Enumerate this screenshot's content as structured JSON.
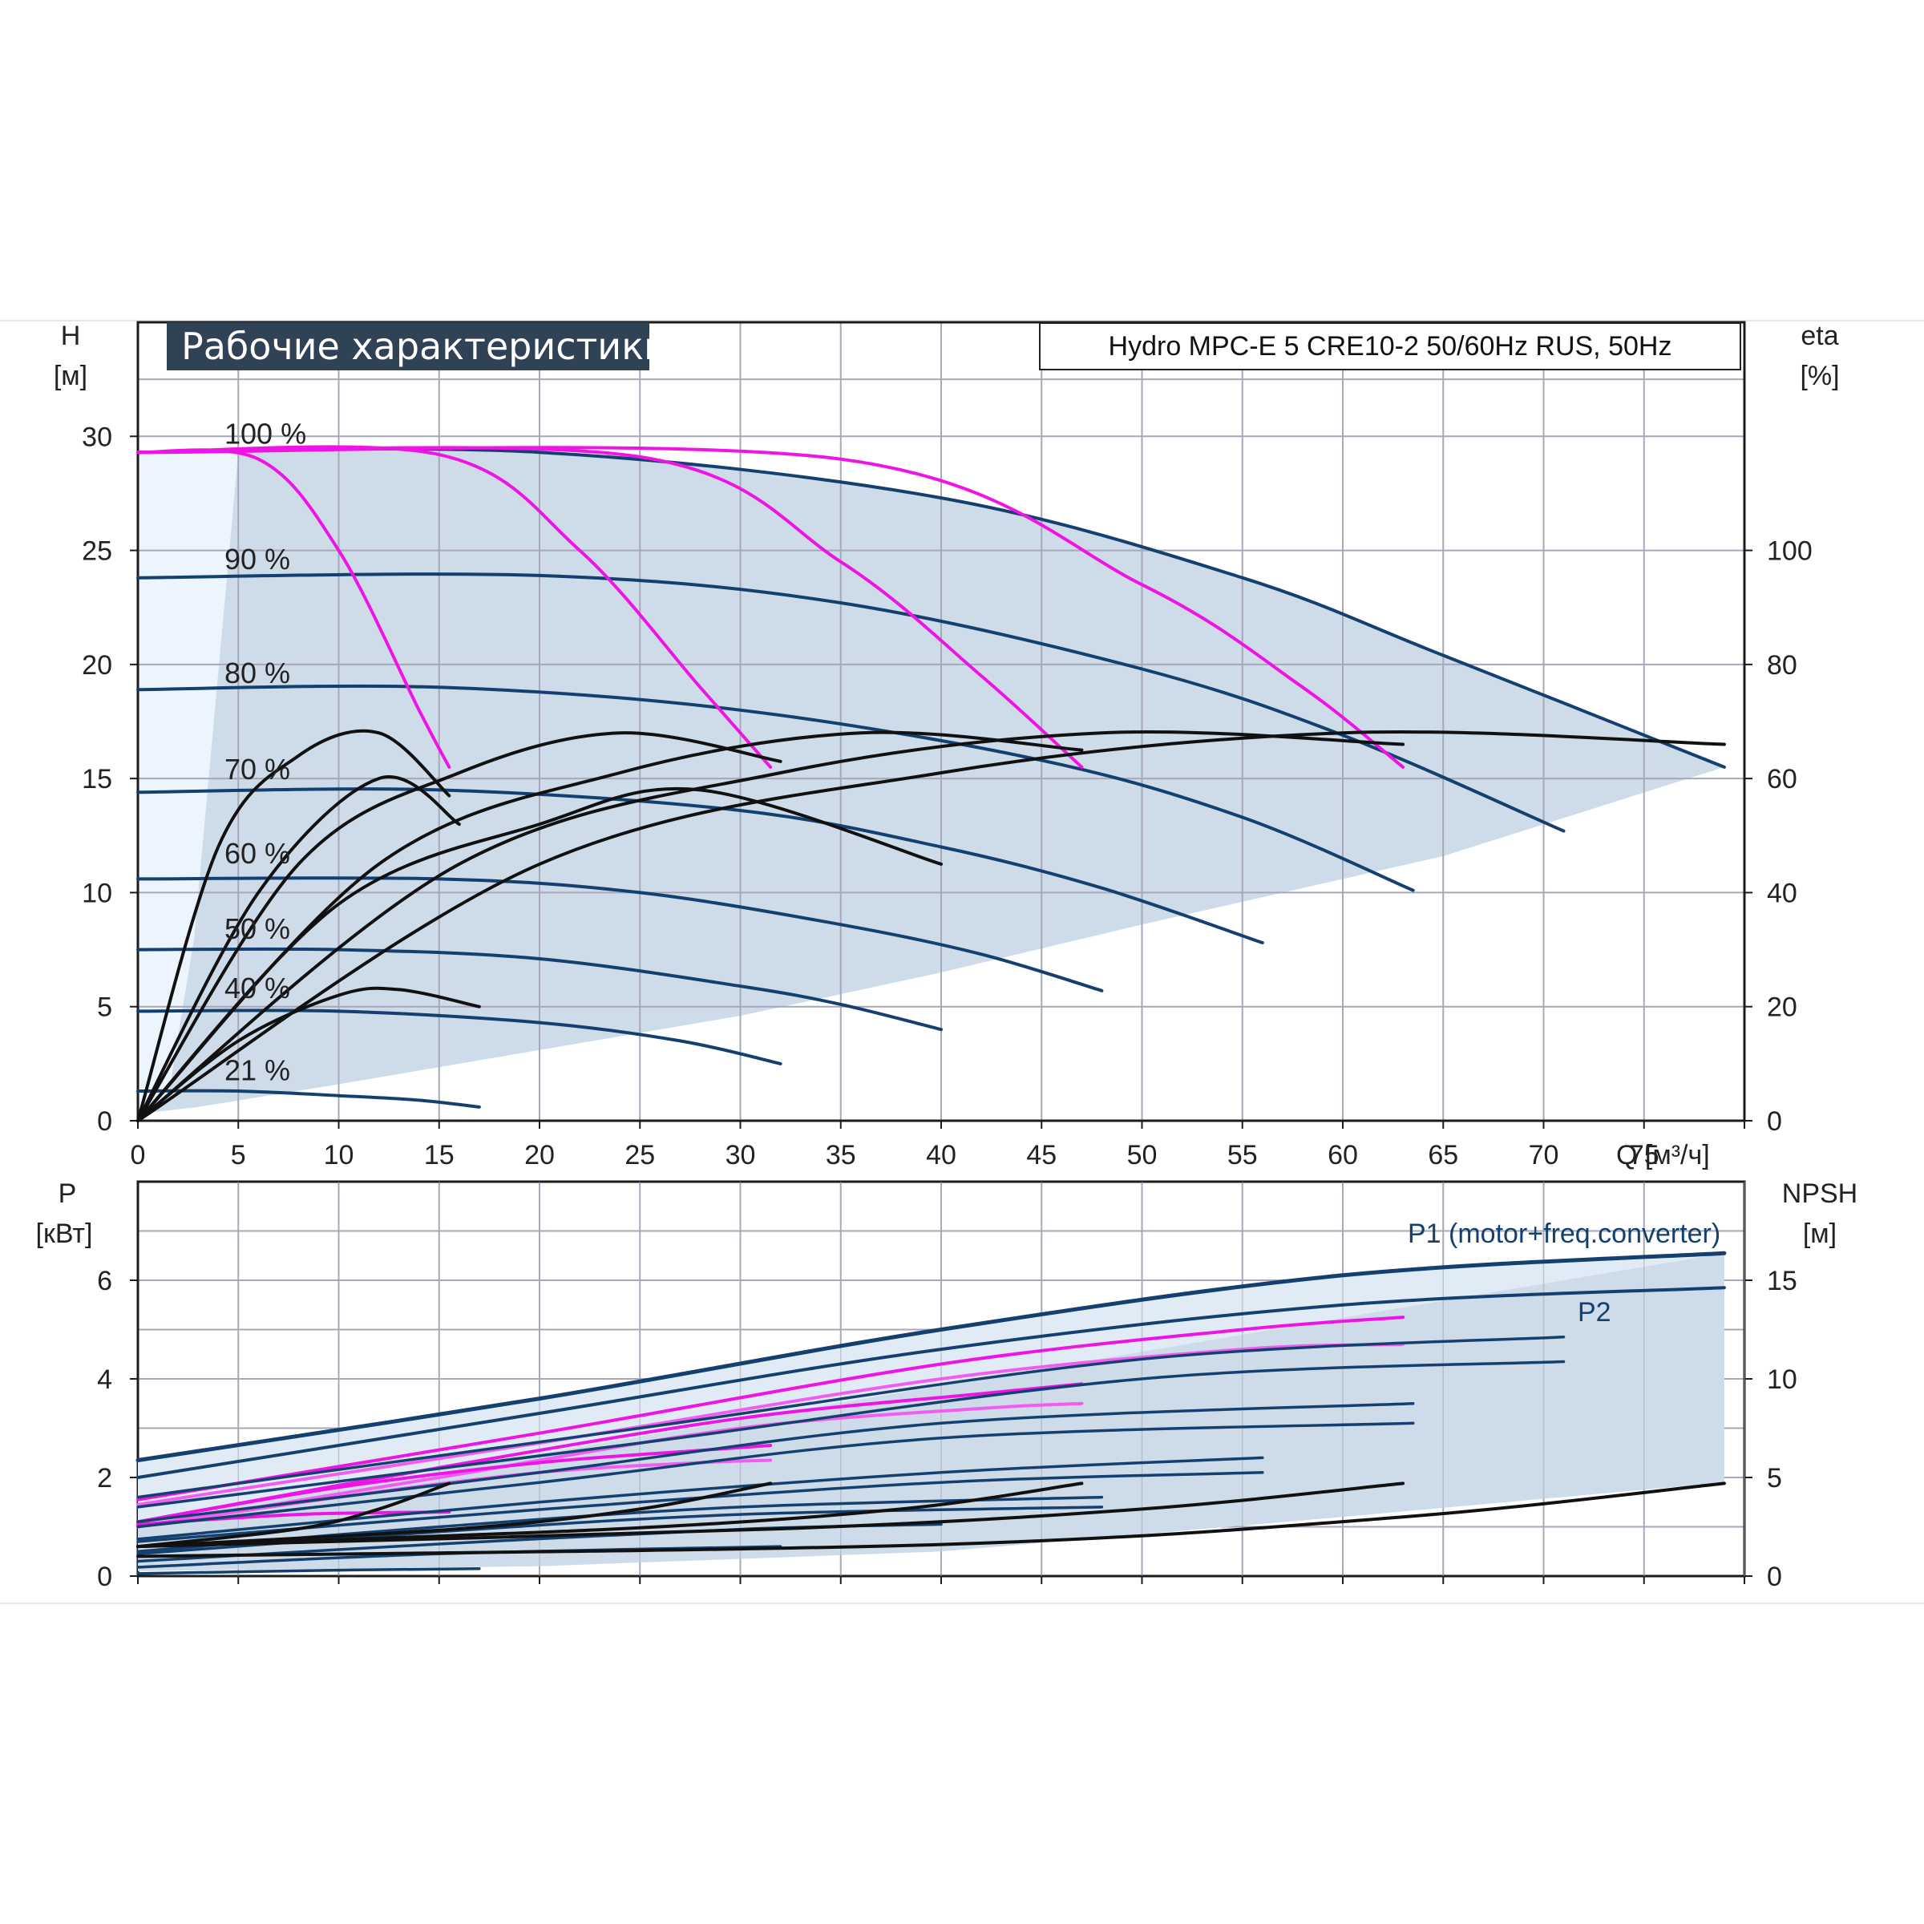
{
  "chart_data": [
    {
      "type": "line",
      "title": "Рабочие характеристики",
      "subtitle": "Hydro MPC-E 5 CRE10-2 50/60Hz RUS, 50Hz",
      "xlabel": "Q [м³/ч]",
      "xlim": [
        0,
        80
      ],
      "xticks": [
        "0",
        "5",
        "10",
        "15",
        "20",
        "25",
        "30",
        "35",
        "40",
        "45",
        "50",
        "55",
        "60",
        "65",
        "70",
        "75"
      ],
      "ylabel": "H",
      "yunit": "[м]",
      "ylim": [
        0,
        35
      ],
      "yticks": [
        "0",
        "5",
        "10",
        "15",
        "20",
        "25",
        "30"
      ],
      "y2label": "eta",
      "y2unit": "[%]",
      "y2lim": [
        0,
        140
      ],
      "y2ticks": [
        "0",
        "20",
        "40",
        "60",
        "80",
        "100"
      ],
      "grid": true,
      "speed_labels": [
        {
          "text": "100 %",
          "y": 30.1
        },
        {
          "text": "90 %",
          "y": 24.6
        },
        {
          "text": "80 %",
          "y": 19.6
        },
        {
          "text": "70 %",
          "y": 15.4
        },
        {
          "text": "60 %",
          "y": 11.7
        },
        {
          "text": "50 %",
          "y": 8.4
        },
        {
          "text": "40 %",
          "y": 5.8
        },
        {
          "text": "21 %",
          "y": 2.2
        }
      ],
      "head_curves": [
        {
          "speed": "100 %",
          "x": [
            0,
            20,
            40,
            55,
            65,
            79
          ],
          "y": [
            29.3,
            29.3,
            27.3,
            23.8,
            20.4,
            15.5
          ]
        },
        {
          "speed": "90 %",
          "x": [
            0,
            20,
            35,
            50,
            60,
            71
          ],
          "y": [
            23.8,
            23.9,
            22.7,
            19.8,
            16.9,
            12.7
          ]
        },
        {
          "speed": "80 %",
          "x": [
            0,
            15,
            30,
            45,
            55,
            63.5
          ],
          "y": [
            18.9,
            19.0,
            18.0,
            15.8,
            13.3,
            10.1
          ]
        },
        {
          "speed": "70 %",
          "x": [
            0,
            15,
            30,
            40,
            48,
            56
          ],
          "y": [
            14.4,
            14.5,
            13.6,
            12.0,
            10.2,
            7.8
          ]
        },
        {
          "speed": "60 %",
          "x": [
            0,
            15,
            25,
            35,
            42,
            48
          ],
          "y": [
            10.6,
            10.6,
            10.0,
            8.6,
            7.3,
            5.7
          ]
        },
        {
          "speed": "50 %",
          "x": [
            0,
            10,
            20,
            30,
            35,
            40
          ],
          "y": [
            7.5,
            7.5,
            7.1,
            5.9,
            5.1,
            4.0
          ]
        },
        {
          "speed": "40 %",
          "x": [
            0,
            10,
            20,
            27,
            32
          ],
          "y": [
            4.8,
            4.8,
            4.3,
            3.5,
            2.5
          ]
        },
        {
          "speed": "21 %",
          "x": [
            0,
            5,
            10,
            14,
            17
          ],
          "y": [
            1.3,
            1.3,
            1.1,
            0.9,
            0.6
          ]
        }
      ],
      "pump_count_curves": [
        {
          "x": [
            0,
            6,
            10,
            14,
            15.5
          ],
          "y": [
            29.3,
            29.0,
            25.0,
            18.0,
            15.5
          ]
        },
        {
          "x": [
            0,
            15,
            22,
            28,
            31.5
          ],
          "y": [
            29.3,
            29.2,
            25.0,
            19.0,
            15.5
          ]
        },
        {
          "x": [
            0,
            25,
            35,
            42,
            47
          ],
          "y": [
            29.3,
            29.1,
            24.5,
            19.5,
            15.5
          ]
        },
        {
          "x": [
            0,
            35,
            50,
            58,
            63
          ],
          "y": [
            29.3,
            29.0,
            23.5,
            19.0,
            15.5
          ]
        }
      ],
      "efficiency_curves": [
        {
          "x": [
            0,
            4,
            8,
            12,
            15.5
          ],
          "y": [
            0,
            48,
            64,
            68,
            57
          ]
        },
        {
          "x": [
            0,
            8,
            16,
            24,
            32
          ],
          "y": [
            0,
            45,
            61,
            68,
            63
          ]
        },
        {
          "x": [
            0,
            12,
            24,
            36,
            47
          ],
          "y": [
            0,
            45,
            61,
            68,
            65
          ]
        },
        {
          "x": [
            0,
            16,
            32,
            48,
            63
          ],
          "y": [
            0,
            45,
            61,
            68,
            66
          ]
        },
        {
          "x": [
            0,
            20,
            40,
            60,
            79
          ],
          "y": [
            0,
            45,
            61,
            68,
            66
          ]
        },
        {
          "x": [
            0,
            6,
            12,
            16
          ],
          "y": [
            0,
            40,
            60,
            52
          ]
        },
        {
          "x": [
            0,
            10,
            20,
            28,
            40
          ],
          "y": [
            0,
            38,
            52,
            58,
            45
          ]
        },
        {
          "x": [
            0,
            5,
            10,
            13,
            17
          ],
          "y": [
            0,
            14,
            22,
            23,
            20
          ]
        }
      ]
    },
    {
      "type": "line",
      "ylabel": "P",
      "yunit": "[кВт]",
      "ylim": [
        0,
        8
      ],
      "yticks": [
        "0",
        "2",
        "4",
        "6"
      ],
      "y2label": "NPSH",
      "y2unit": "[м]",
      "y2lim": [
        0,
        20
      ],
      "y2ticks": [
        "0",
        "5",
        "10",
        "15"
      ],
      "xlim": [
        0,
        80
      ],
      "grid": true,
      "series": [
        {
          "name": "P1 (motor+freq.converter)",
          "x": [
            0,
            20,
            40,
            60,
            79
          ],
          "y": [
            2.35,
            3.6,
            5.0,
            6.1,
            6.55
          ]
        },
        {
          "name": "P2",
          "x": [
            0,
            20,
            40,
            60,
            79
          ],
          "y": [
            2.0,
            3.3,
            4.6,
            5.5,
            5.85
          ]
        }
      ],
      "power_curves": [
        {
          "x": [
            0,
            20,
            40,
            55,
            63
          ],
          "y": [
            1.55,
            2.9,
            4.3,
            5.0,
            5.25
          ]
        },
        {
          "x": [
            0,
            20,
            40,
            55,
            63
          ],
          "y": [
            1.45,
            2.7,
            4.0,
            4.6,
            4.7
          ]
        },
        {
          "x": [
            0,
            15,
            30,
            42,
            47
          ],
          "y": [
            1.1,
            2.2,
            3.2,
            3.7,
            3.9
          ]
        },
        {
          "x": [
            0,
            15,
            30,
            42,
            47
          ],
          "y": [
            1.0,
            2.0,
            3.0,
            3.4,
            3.5
          ]
        },
        {
          "x": [
            0,
            10,
            20,
            28,
            31.5
          ],
          "y": [
            1.1,
            1.8,
            2.3,
            2.55,
            2.65
          ]
        },
        {
          "x": [
            0,
            10,
            20,
            28,
            31.5
          ],
          "y": [
            1.0,
            1.6,
            2.1,
            2.3,
            2.35
          ]
        },
        {
          "x": [
            0,
            8,
            15.5
          ],
          "y": [
            1.05,
            1.25,
            1.3
          ]
        },
        {
          "x": [
            0,
            25,
            50,
            71
          ],
          "y": [
            1.6,
            3.0,
            4.4,
            4.85
          ]
        },
        {
          "x": [
            0,
            25,
            50,
            71
          ],
          "y": [
            1.4,
            2.7,
            4.0,
            4.35
          ]
        },
        {
          "x": [
            0,
            20,
            40,
            63.5
          ],
          "y": [
            1.1,
            2.1,
            3.1,
            3.5
          ]
        },
        {
          "x": [
            0,
            20,
            40,
            63.5
          ],
          "y": [
            1.0,
            1.9,
            2.8,
            3.1
          ]
        },
        {
          "x": [
            0,
            20,
            40,
            56
          ],
          "y": [
            0.75,
            1.5,
            2.1,
            2.4
          ]
        },
        {
          "x": [
            0,
            20,
            40,
            56
          ],
          "y": [
            0.7,
            1.35,
            1.9,
            2.1
          ]
        },
        {
          "x": [
            0,
            15,
            30,
            48
          ],
          "y": [
            0.5,
            1.0,
            1.4,
            1.6
          ]
        },
        {
          "x": [
            0,
            15,
            30,
            48
          ],
          "y": [
            0.45,
            0.9,
            1.25,
            1.4
          ]
        },
        {
          "x": [
            0,
            15,
            30,
            40
          ],
          "y": [
            0.3,
            0.65,
            0.95,
            1.05
          ]
        },
        {
          "x": [
            0,
            15,
            32
          ],
          "y": [
            0.18,
            0.45,
            0.6
          ]
        },
        {
          "x": [
            0,
            10,
            17
          ],
          "y": [
            0.05,
            0.12,
            0.15
          ]
        }
      ],
      "npsh_curves": [
        {
          "x": [
            0,
            8,
            12,
            15.5
          ],
          "y": [
            1.5,
            2.4,
            3.4,
            4.7
          ]
        },
        {
          "x": [
            0,
            16,
            25,
            31.5
          ],
          "y": [
            1.5,
            2.4,
            3.4,
            4.7
          ]
        },
        {
          "x": [
            0,
            24,
            38,
            47
          ],
          "y": [
            1.5,
            2.4,
            3.4,
            4.7
          ]
        },
        {
          "x": [
            0,
            32,
            50,
            63
          ],
          "y": [
            1.5,
            2.4,
            3.4,
            4.7
          ]
        },
        {
          "x": [
            0,
            40,
            63,
            79
          ],
          "y": [
            1.0,
            1.6,
            3.0,
            4.7
          ]
        }
      ]
    }
  ]
}
